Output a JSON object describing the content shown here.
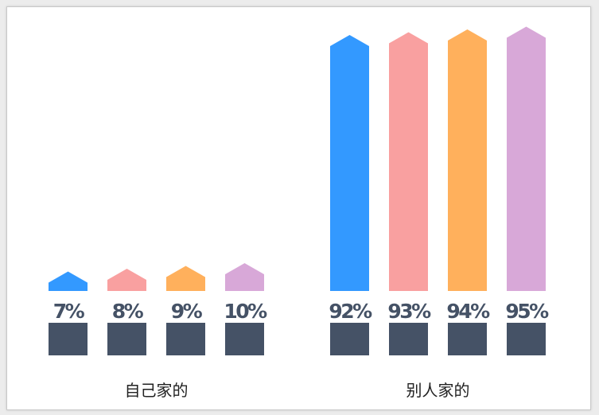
{
  "chart_data": {
    "type": "bar",
    "groups": [
      {
        "label": "自己家的",
        "bars": [
          {
            "value": 7,
            "label": "7%",
            "color": "#3399ff"
          },
          {
            "value": 8,
            "label": "8%",
            "color": "#f9a0a0"
          },
          {
            "value": 9,
            "label": "9%",
            "color": "#ffb05c"
          },
          {
            "value": 10,
            "label": "10%",
            "color": "#d8a8d8"
          }
        ]
      },
      {
        "label": "别人家的",
        "bars": [
          {
            "value": 92,
            "label": "92%",
            "color": "#3399ff"
          },
          {
            "value": 93,
            "label": "93%",
            "color": "#f9a0a0"
          },
          {
            "value": 94,
            "label": "94%",
            "color": "#ffb05c"
          },
          {
            "value": 95,
            "label": "95%",
            "color": "#d8a8d8"
          }
        ]
      }
    ],
    "ylim": [
      0,
      100
    ],
    "grid": false,
    "legend": "none",
    "base_color": "#455266",
    "label_color": "#455266"
  }
}
